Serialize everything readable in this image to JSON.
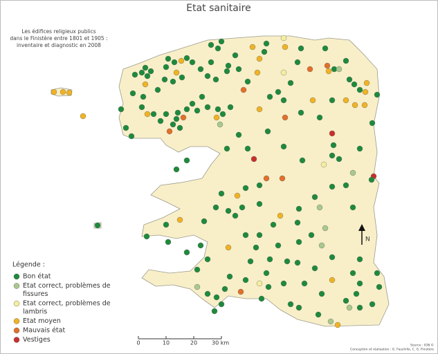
{
  "title": "Etat sanitaire",
  "subtitle": [
    "Les édifices religieux publics",
    "dans le Finistère entre 1801 et 1905 :",
    "inventaire et diagnostic en 2008"
  ],
  "legend": {
    "title": "Légende :",
    "items": [
      {
        "label": [
          "Bon état"
        ],
        "color": "#1e8a3c"
      },
      {
        "label": [
          "Etat correct, problèmes de",
          "fissures"
        ],
        "color": "#a9c98c"
      },
      {
        "label": [
          "Etat correct, problèmes de",
          "lambris"
        ],
        "color": "#f4eea0"
      },
      {
        "label": [
          "Etat moyen"
        ],
        "color": "#f0b323"
      },
      {
        "label": [
          "Mauvais état"
        ],
        "color": "#e2702a"
      },
      {
        "label": [
          "Vestiges"
        ],
        "color": "#c8302c"
      }
    ]
  },
  "scale": {
    "labels": [
      "0",
      "10",
      "20",
      "30 km"
    ]
  },
  "north": "N",
  "source": [
    "Source : IGN ©",
    "Conception et réalisation : G. Fauchille, C. G. Finistère"
  ]
}
